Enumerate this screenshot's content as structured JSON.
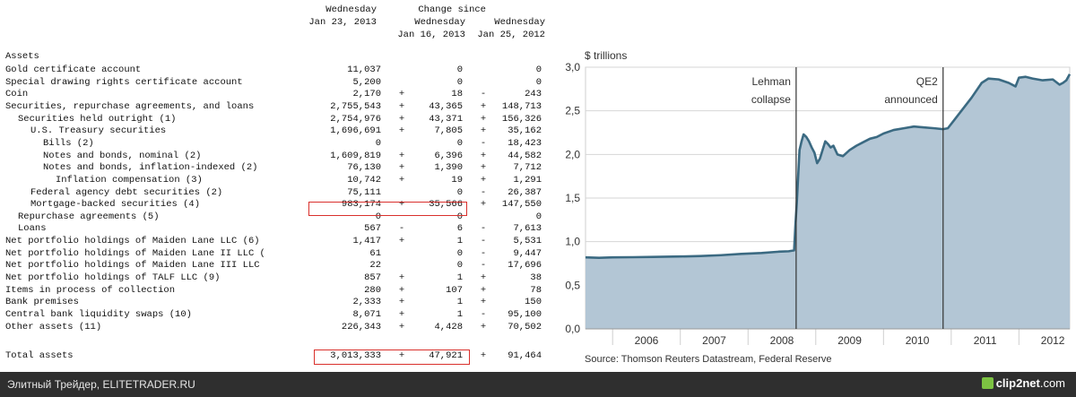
{
  "table": {
    "header": {
      "col1_line1": "Wednesday",
      "col1_line2": "Jan 23, 2013",
      "change_since": "Change since",
      "col2_line1": "Wednesday",
      "col2_line2": "Jan 16, 2013",
      "col3_line1": "Wednesday",
      "col3_line2": "Jan 25, 2012"
    },
    "section_title": "Assets",
    "rows": [
      {
        "label": "Gold certificate account",
        "indent": 1,
        "v1": "11,037",
        "s2": "",
        "v2": "0",
        "s3": "",
        "v3": "0"
      },
      {
        "label": "Special drawing rights certificate account",
        "indent": 1,
        "v1": "5,200",
        "s2": "",
        "v2": "0",
        "s3": "",
        "v3": "0"
      },
      {
        "label": "Coin",
        "indent": 1,
        "v1": "2,170",
        "s2": "+",
        "v2": "18",
        "s3": "-",
        "v3": "243"
      },
      {
        "label": "Securities, repurchase agreements, and loans",
        "indent": 1,
        "v1": "2,755,543",
        "s2": "+",
        "v2": "43,365",
        "s3": "+",
        "v3": "148,713"
      },
      {
        "label": "Securities held outright (1)",
        "indent": 2,
        "v1": "2,754,976",
        "s2": "+",
        "v2": "43,371",
        "s3": "+",
        "v3": "156,326"
      },
      {
        "label": "U.S. Treasury securities",
        "indent": 3,
        "v1": "1,696,691",
        "s2": "+",
        "v2": "7,805",
        "s3": "+",
        "v3": "35,162"
      },
      {
        "label": "Bills (2)",
        "indent": 4,
        "v1": "0",
        "s2": "",
        "v2": "0",
        "s3": "-",
        "v3": "18,423"
      },
      {
        "label": "Notes and bonds, nominal (2)",
        "indent": 4,
        "v1": "1,609,819",
        "s2": "+",
        "v2": "6,396",
        "s3": "+",
        "v3": "44,582"
      },
      {
        "label": "Notes and bonds, inflation-indexed (2)",
        "indent": 4,
        "v1": "76,130",
        "s2": "+",
        "v2": "1,390",
        "s3": "+",
        "v3": "7,712"
      },
      {
        "label": "Inflation compensation (3)",
        "indent": 5,
        "v1": "10,742",
        "s2": "+",
        "v2": "19",
        "s3": "+",
        "v3": "1,291"
      },
      {
        "label": "Federal agency debt securities (2)",
        "indent": 3,
        "v1": "75,111",
        "s2": "",
        "v2": "0",
        "s3": "-",
        "v3": "26,387"
      },
      {
        "label": "Mortgage-backed securities (4)",
        "indent": 3,
        "v1": "983,174",
        "s2": "+",
        "v2": "35,566",
        "s3": "+",
        "v3": "147,550"
      },
      {
        "label": "Repurchase agreements (5)",
        "indent": 2,
        "v1": "0",
        "s2": "",
        "v2": "0",
        "s3": "",
        "v3": "0"
      },
      {
        "label": "Loans",
        "indent": 2,
        "v1": "567",
        "s2": "-",
        "v2": "6",
        "s3": "-",
        "v3": "7,613"
      },
      {
        "label": "Net portfolio holdings of Maiden Lane LLC (6)",
        "indent": 1,
        "v1": "1,417",
        "s2": "+",
        "v2": "1",
        "s3": "-",
        "v3": "5,531"
      },
      {
        "label": "Net portfolio holdings of Maiden Lane II LLC (",
        "indent": 1,
        "v1": "61",
        "s2": "",
        "v2": "0",
        "s3": "-",
        "v3": "9,447"
      },
      {
        "label": "Net portfolio holdings of Maiden Lane III LLC",
        "indent": 1,
        "v1": "22",
        "s2": "",
        "v2": "0",
        "s3": "-",
        "v3": "17,696"
      },
      {
        "label": "Net portfolio holdings of TALF LLC (9)",
        "indent": 1,
        "v1": "857",
        "s2": "+",
        "v2": "1",
        "s3": "+",
        "v3": "38"
      },
      {
        "label": "Items in process of collection",
        "indent": 1,
        "v1": "280",
        "s2": "+",
        "v2": "107",
        "s3": "+",
        "v3": "78"
      },
      {
        "label": "Bank premises",
        "indent": 1,
        "v1": "2,333",
        "s2": "+",
        "v2": "1",
        "s3": "+",
        "v3": "150"
      },
      {
        "label": "Central bank liquidity swaps (10)",
        "indent": 1,
        "v1": "8,071",
        "s2": "+",
        "v2": "1",
        "s3": "-",
        "v3": "95,100"
      },
      {
        "label": "Other assets (11)",
        "indent": 1,
        "v1": "226,343",
        "s2": "+",
        "v2": "4,428",
        "s3": "+",
        "v3": "70,502"
      }
    ],
    "total": {
      "label": "Total assets",
      "v1": "3,013,333",
      "s2": "+",
      "v2": "47,921",
      "s3": "+",
      "v3": "91,464"
    }
  },
  "chart_data": {
    "type": "area",
    "title": "",
    "ylabel": "$ trillions",
    "xlabel": "",
    "ylim": [
      0,
      3.0
    ],
    "xlim": [
      2005.6,
      2012.75
    ],
    "yticks": [
      "0,0",
      "0,5",
      "1,0",
      "1,5",
      "2,0",
      "2,5",
      "3,0"
    ],
    "xtick_labels": [
      "2006",
      "2007",
      "2008",
      "2009",
      "2010",
      "2011",
      "2012"
    ],
    "grid": true,
    "annotations": [
      {
        "x": 2008.71,
        "line1": "Lehman",
        "line2": "collapse"
      },
      {
        "x": 2010.88,
        "line1": "QE2",
        "line2": "announced"
      }
    ],
    "series": [
      {
        "fill_color": "#b3c6d5",
        "line_color": "#3b6a82",
        "points": [
          [
            2005.6,
            0.82
          ],
          [
            2005.8,
            0.815
          ],
          [
            2006.0,
            0.82
          ],
          [
            2006.3,
            0.822
          ],
          [
            2006.6,
            0.825
          ],
          [
            2007.0,
            0.83
          ],
          [
            2007.3,
            0.835
          ],
          [
            2007.6,
            0.845
          ],
          [
            2007.9,
            0.86
          ],
          [
            2008.2,
            0.87
          ],
          [
            2008.45,
            0.885
          ],
          [
            2008.6,
            0.89
          ],
          [
            2008.68,
            0.9
          ],
          [
            2008.7,
            1.2
          ],
          [
            2008.72,
            1.45
          ],
          [
            2008.74,
            1.75
          ],
          [
            2008.76,
            2.05
          ],
          [
            2008.79,
            2.15
          ],
          [
            2008.82,
            2.23
          ],
          [
            2008.86,
            2.2
          ],
          [
            2008.9,
            2.15
          ],
          [
            2008.94,
            2.08
          ],
          [
            2008.98,
            2.02
          ],
          [
            2009.02,
            1.9
          ],
          [
            2009.06,
            1.95
          ],
          [
            2009.1,
            2.05
          ],
          [
            2009.14,
            2.15
          ],
          [
            2009.18,
            2.12
          ],
          [
            2009.22,
            2.08
          ],
          [
            2009.26,
            2.1
          ],
          [
            2009.32,
            2.0
          ],
          [
            2009.4,
            1.98
          ],
          [
            2009.5,
            2.05
          ],
          [
            2009.6,
            2.1
          ],
          [
            2009.7,
            2.14
          ],
          [
            2009.8,
            2.18
          ],
          [
            2009.9,
            2.2
          ],
          [
            2010.0,
            2.24
          ],
          [
            2010.15,
            2.28
          ],
          [
            2010.3,
            2.3
          ],
          [
            2010.45,
            2.32
          ],
          [
            2010.6,
            2.31
          ],
          [
            2010.75,
            2.3
          ],
          [
            2010.88,
            2.29
          ],
          [
            2010.95,
            2.3
          ],
          [
            2011.05,
            2.4
          ],
          [
            2011.15,
            2.5
          ],
          [
            2011.3,
            2.65
          ],
          [
            2011.45,
            2.82
          ],
          [
            2011.55,
            2.87
          ],
          [
            2011.7,
            2.86
          ],
          [
            2011.85,
            2.82
          ],
          [
            2011.95,
            2.78
          ],
          [
            2012.0,
            2.88
          ],
          [
            2012.1,
            2.89
          ],
          [
            2012.2,
            2.87
          ],
          [
            2012.35,
            2.85
          ],
          [
            2012.5,
            2.86
          ],
          [
            2012.6,
            2.8
          ],
          [
            2012.65,
            2.82
          ],
          [
            2012.7,
            2.85
          ],
          [
            2012.75,
            2.92
          ]
        ]
      }
    ],
    "source": "Source: Thomson Reuters Datastream, Federal Reserve"
  },
  "footer": {
    "left_text": "Элитный Трейдер, ELITETRADER.RU",
    "brand_name": "clip2net",
    "brand_domain": ".com"
  }
}
